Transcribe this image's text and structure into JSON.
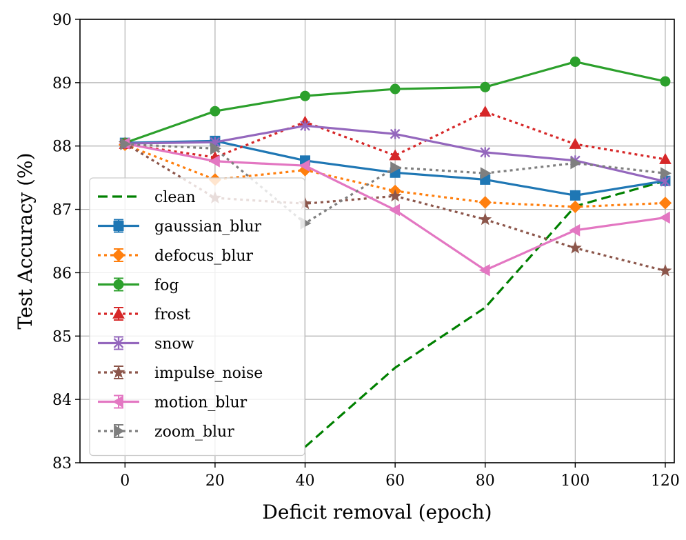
{
  "chart_data": {
    "type": "line",
    "title": "",
    "xlabel": "Deficit removal (epoch)",
    "ylabel": "Test Accuracy (%)",
    "xlim": [
      -10,
      122
    ],
    "ylim": [
      83,
      90
    ],
    "xticks": [
      0,
      20,
      40,
      60,
      80,
      100,
      120
    ],
    "yticks": [
      83,
      84,
      85,
      86,
      87,
      88,
      89,
      90
    ],
    "grid": true,
    "legend_position": "lower-left",
    "x": [
      0,
      20,
      40,
      60,
      80,
      100,
      120
    ],
    "series": [
      {
        "name": "clean",
        "color": "#008000",
        "dash": "dashed",
        "marker": "none",
        "x": [
          40,
          60,
          80,
          100,
          120
        ],
        "values": [
          83.25,
          84.5,
          85.45,
          87.05,
          87.45
        ]
      },
      {
        "name": "gaussian_blur",
        "color": "#1f77b4",
        "dash": "solid",
        "marker": "square",
        "values": [
          88.05,
          88.08,
          87.77,
          87.58,
          87.47,
          87.22,
          87.45
        ]
      },
      {
        "name": "defocus_blur",
        "color": "#ff7f0e",
        "dash": "dotted",
        "marker": "diamond",
        "values": [
          88.02,
          87.47,
          87.62,
          87.29,
          87.11,
          87.04,
          87.1
        ]
      },
      {
        "name": "fog",
        "color": "#2ca02c",
        "dash": "solid",
        "marker": "circle",
        "values": [
          88.05,
          88.55,
          88.79,
          88.9,
          88.93,
          89.33,
          89.02
        ]
      },
      {
        "name": "frost",
        "color": "#d62728",
        "dash": "dotted",
        "marker": "triangle-up",
        "values": [
          88.03,
          87.82,
          88.38,
          87.85,
          88.54,
          88.03,
          87.79
        ]
      },
      {
        "name": "snow",
        "color": "#9467bd",
        "dash": "solid",
        "marker": "x",
        "values": [
          88.04,
          88.06,
          88.32,
          88.19,
          87.9,
          87.77,
          87.44
        ]
      },
      {
        "name": "impulse_noise",
        "color": "#8c564b",
        "dash": "dotted",
        "marker": "star",
        "values": [
          88.04,
          87.18,
          87.09,
          87.21,
          86.84,
          86.39,
          86.03
        ]
      },
      {
        "name": "motion_blur",
        "color": "#e377c2",
        "dash": "solid",
        "marker": "triangle-left",
        "values": [
          88.04,
          87.76,
          87.69,
          86.99,
          86.04,
          86.67,
          86.87
        ]
      },
      {
        "name": "zoom_blur",
        "color": "#7f7f7f",
        "dash": "dotted",
        "marker": "triangle-right",
        "values": [
          88.03,
          87.96,
          86.78,
          87.66,
          87.57,
          87.73,
          87.57
        ]
      }
    ]
  }
}
